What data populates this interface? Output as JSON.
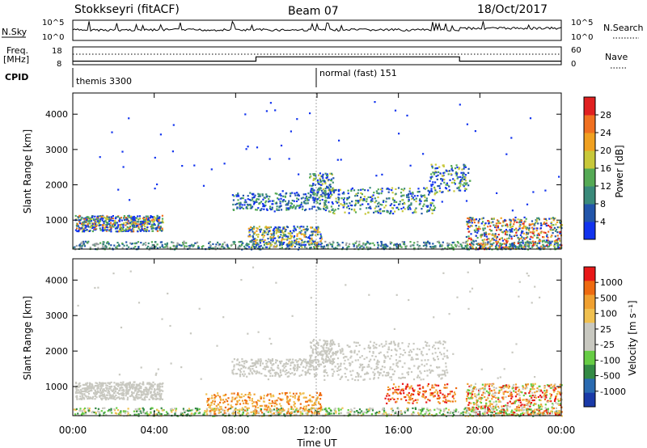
{
  "header": {
    "station": "Stokkseyri (fitACF)",
    "beam": "Beam 07",
    "date": "18/Oct/2017"
  },
  "panel_labels": {
    "nsky": "N.Sky",
    "nsearch": "N.Search",
    "freq_line1": "Freq.",
    "freq_line2": "[MHz]",
    "nave": "Nave",
    "cpid": "CPID"
  },
  "cpid_modes": [
    "themis 3300",
    "normal (fast) 151"
  ],
  "axes": {
    "slant_range_label": "Slant Range [km]",
    "time_label": "Time UT",
    "power_label": "Power [dB]",
    "velocity_label": "Velocity [m s⁻¹]"
  },
  "colors": {
    "power_scale": [
      "#1133ee",
      "#2255aa",
      "#3a8a7a",
      "#55aa55",
      "#c8c83a",
      "#f0a020",
      "#f07020",
      "#e02020"
    ],
    "velocity_scale": [
      "#e81818",
      "#ee6a10",
      "#f0a030",
      "#f0c050",
      "#c8c8c0",
      "#c8c8c0",
      "#66cc44",
      "#338a44",
      "#2a6ab0",
      "#1a3aa8"
    ]
  },
  "chart_data": [
    {
      "type": "line",
      "title": "N.Sky / N.Search",
      "yticks_left": [
        "10^5",
        "10^0"
      ],
      "yticks_right": [
        "10^5",
        "10^0"
      ],
      "x_range": [
        0,
        24
      ],
      "x_unit": "hours UT"
    },
    {
      "type": "line",
      "title": "Freq. / Nave",
      "yticks_left": [
        "18",
        "8"
      ],
      "yticks_right": [
        "60",
        "0"
      ],
      "freq_mhz": [
        {
          "x": 0,
          "y": 10
        },
        {
          "x": 9,
          "y": 10
        },
        {
          "x": 9,
          "y": 12.4
        },
        {
          "x": 19,
          "y": 12.4
        },
        {
          "x": 19,
          "y": 10
        },
        {
          "x": 24,
          "y": 10
        }
      ],
      "x_range": [
        0,
        24
      ]
    },
    {
      "type": "heatmap",
      "title": "Power",
      "xlabel": "Time UT",
      "ylabel": "Slant Range [km]",
      "xticks": [
        "00:00",
        "04:00",
        "08:00",
        "12:00",
        "16:00",
        "20:00",
        "00:00"
      ],
      "yticks": [
        1000,
        2000,
        3000,
        4000
      ],
      "ylim": [
        180,
        4600
      ],
      "colorbar": {
        "label": "Power [dB]",
        "ticks": [
          4,
          8,
          12,
          16,
          20,
          24,
          28
        ]
      }
    },
    {
      "type": "heatmap",
      "title": "Velocity",
      "xlabel": "Time UT",
      "ylabel": "Slant Range [km]",
      "xticks": [
        "00:00",
        "04:00",
        "08:00",
        "12:00",
        "16:00",
        "20:00",
        "00:00"
      ],
      "yticks": [
        1000,
        2000,
        3000,
        4000
      ],
      "ylim": [
        180,
        4600
      ],
      "colorbar": {
        "label": "Velocity [m s⁻¹]",
        "ticks": [
          1000,
          500,
          100,
          25,
          -25,
          -100,
          -500,
          -1000
        ]
      }
    }
  ]
}
